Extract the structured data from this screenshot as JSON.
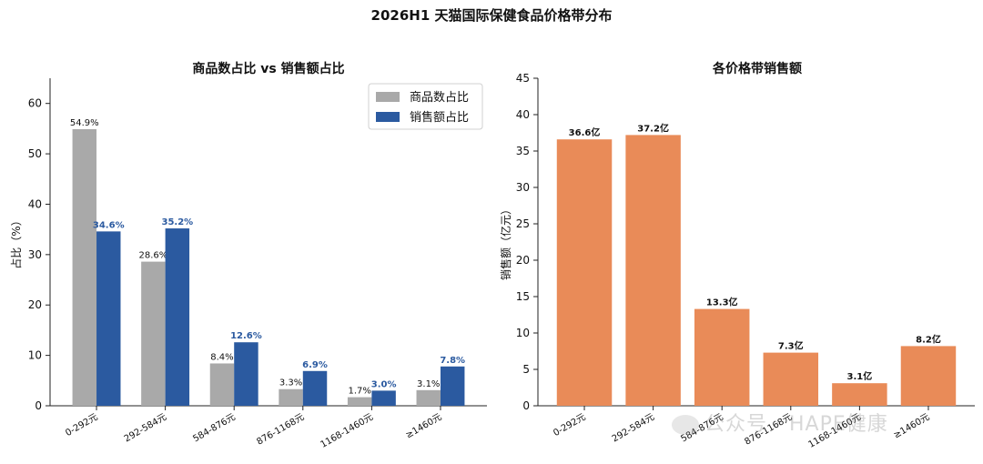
{
  "title": "2026H1 天猫国际保健食品价格带分布",
  "watermark": "公众号 · HAPE健康",
  "chart_data": [
    {
      "type": "bar",
      "title": "商品数占比 vs 销售额占比",
      "ylabel": "占比（%）",
      "xlabel": "",
      "ylim": [
        0,
        65
      ],
      "yticks": [
        0,
        10,
        20,
        30,
        40,
        50,
        60
      ],
      "categories": [
        "0-292元",
        "292-584元",
        "584-876元",
        "876-1168元",
        "1168-1460元",
        "≥1460元"
      ],
      "series": [
        {
          "name": "商品数占比",
          "color": "#a9a9a9",
          "label_color": "#111111",
          "values": [
            54.9,
            28.6,
            8.4,
            3.3,
            1.7,
            3.1
          ],
          "labels": [
            "54.9%",
            "28.6%",
            "8.4%",
            "3.3%",
            "1.7%",
            "3.1%"
          ]
        },
        {
          "name": "销售额占比",
          "color": "#2b5aa0",
          "label_color": "#2b5aa0",
          "values": [
            34.6,
            35.2,
            12.6,
            6.9,
            3.0,
            7.8
          ],
          "labels": [
            "34.6%",
            "35.2%",
            "12.6%",
            "6.9%",
            "3.0%",
            "7.8%"
          ]
        }
      ],
      "legend": "top-right",
      "grid": false
    },
    {
      "type": "bar",
      "title": "各价格带销售额",
      "ylabel": "销售额（亿元）",
      "xlabel": "",
      "ylim": [
        0,
        45
      ],
      "yticks": [
        0,
        5,
        10,
        15,
        20,
        25,
        30,
        35,
        40,
        45
      ],
      "categories": [
        "0-292元",
        "292-584元",
        "584-876元",
        "876-1168元",
        "1168-1460元",
        "≥1460元"
      ],
      "series": [
        {
          "color": "#e98b58",
          "label_color": "#111111",
          "values": [
            36.6,
            37.2,
            13.3,
            7.3,
            3.1,
            8.2
          ],
          "labels": [
            "36.6亿",
            "37.2亿",
            "13.3亿",
            "7.3亿",
            "3.1亿",
            "8.2亿"
          ]
        }
      ],
      "grid": false
    }
  ]
}
